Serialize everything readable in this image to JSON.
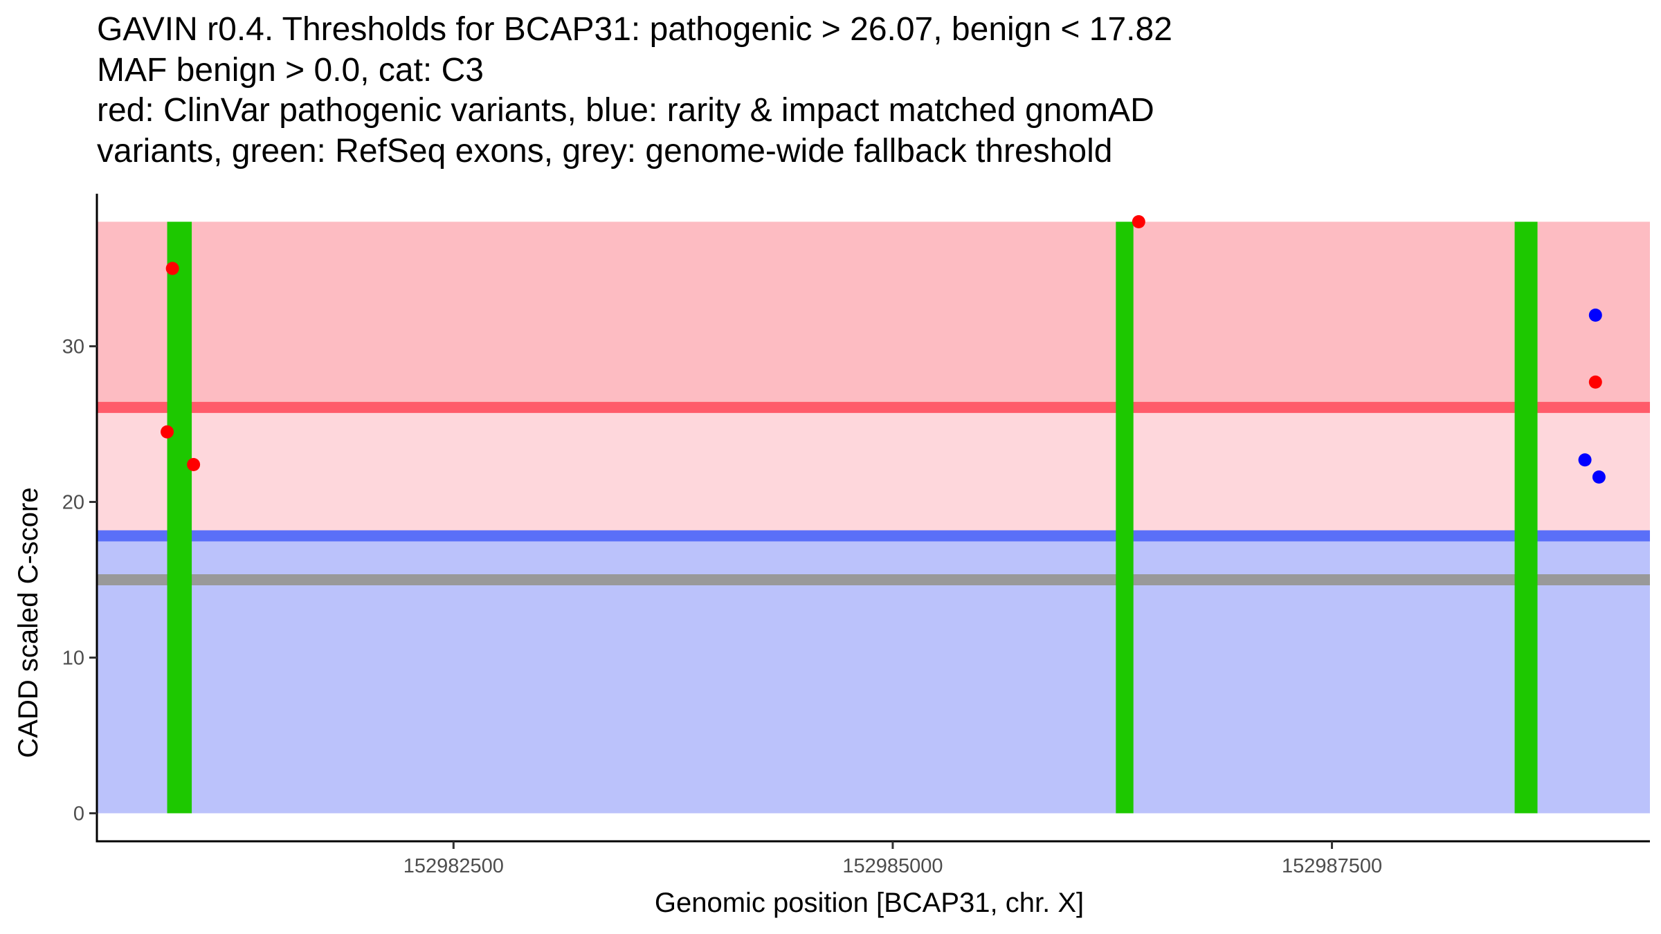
{
  "chart_data": {
    "type": "scatter",
    "title_lines": [
      "GAVIN r0.4. Thresholds for BCAP31: pathogenic > 26.07, benign < 17.82",
      "MAF benign > 0.0, cat: C3",
      "red: ClinVar pathogenic variants, blue: rarity & impact matched gnomAD",
      "variants, green: RefSeq exons, grey: genome-wide fallback threshold"
    ],
    "xlabel": "Genomic position [BCAP31, chr. X]",
    "ylabel": "CADD scaled C-score",
    "xlim": [
      152980470,
      152989310
    ],
    "ylim": [
      -1.8,
      39.8
    ],
    "x_ticks": [
      152982500,
      152985000,
      152987500
    ],
    "x_tick_labels": [
      "152982500",
      "152985000",
      "152987500"
    ],
    "y_ticks": [
      0,
      10,
      20,
      30
    ],
    "y_tick_labels": [
      "0",
      "10",
      "20",
      "30"
    ],
    "colors": {
      "pathogenic_region": "#fdbcc2",
      "uncertain_region": "#fed7dc",
      "benign_region": "#bbc2fb",
      "pathogenic_line": "#ff5b6a",
      "benign_line": "#5a6ff8",
      "fallback_line": "#999999",
      "exon": "#1dc800",
      "clinvar": "#ff0000",
      "gnomad": "#0000ff"
    },
    "regions": {
      "x_start": 152980470,
      "x_end": 152989310,
      "y_max": 38,
      "pathogenic_threshold": 26.07,
      "benign_threshold": 17.82,
      "fallback_threshold": 15
    },
    "exons": [
      {
        "start": 152980870,
        "end": 152981010
      },
      {
        "start": 152986270,
        "end": 152986370
      },
      {
        "start": 152988540,
        "end": 152988670
      }
    ],
    "series": [
      {
        "name": "ClinVar pathogenic variants",
        "color": "#ff0000",
        "points": [
          {
            "x": 152980870,
            "y": 24.5
          },
          {
            "x": 152980900,
            "y": 35.0
          },
          {
            "x": 152981020,
            "y": 22.4
          },
          {
            "x": 152986400,
            "y": 38.0
          },
          {
            "x": 152989000,
            "y": 27.7
          }
        ]
      },
      {
        "name": "gnomAD variants",
        "color": "#0000ff",
        "points": [
          {
            "x": 152988940,
            "y": 22.7
          },
          {
            "x": 152989000,
            "y": 32.0
          },
          {
            "x": 152989020,
            "y": 21.6
          }
        ]
      }
    ]
  }
}
